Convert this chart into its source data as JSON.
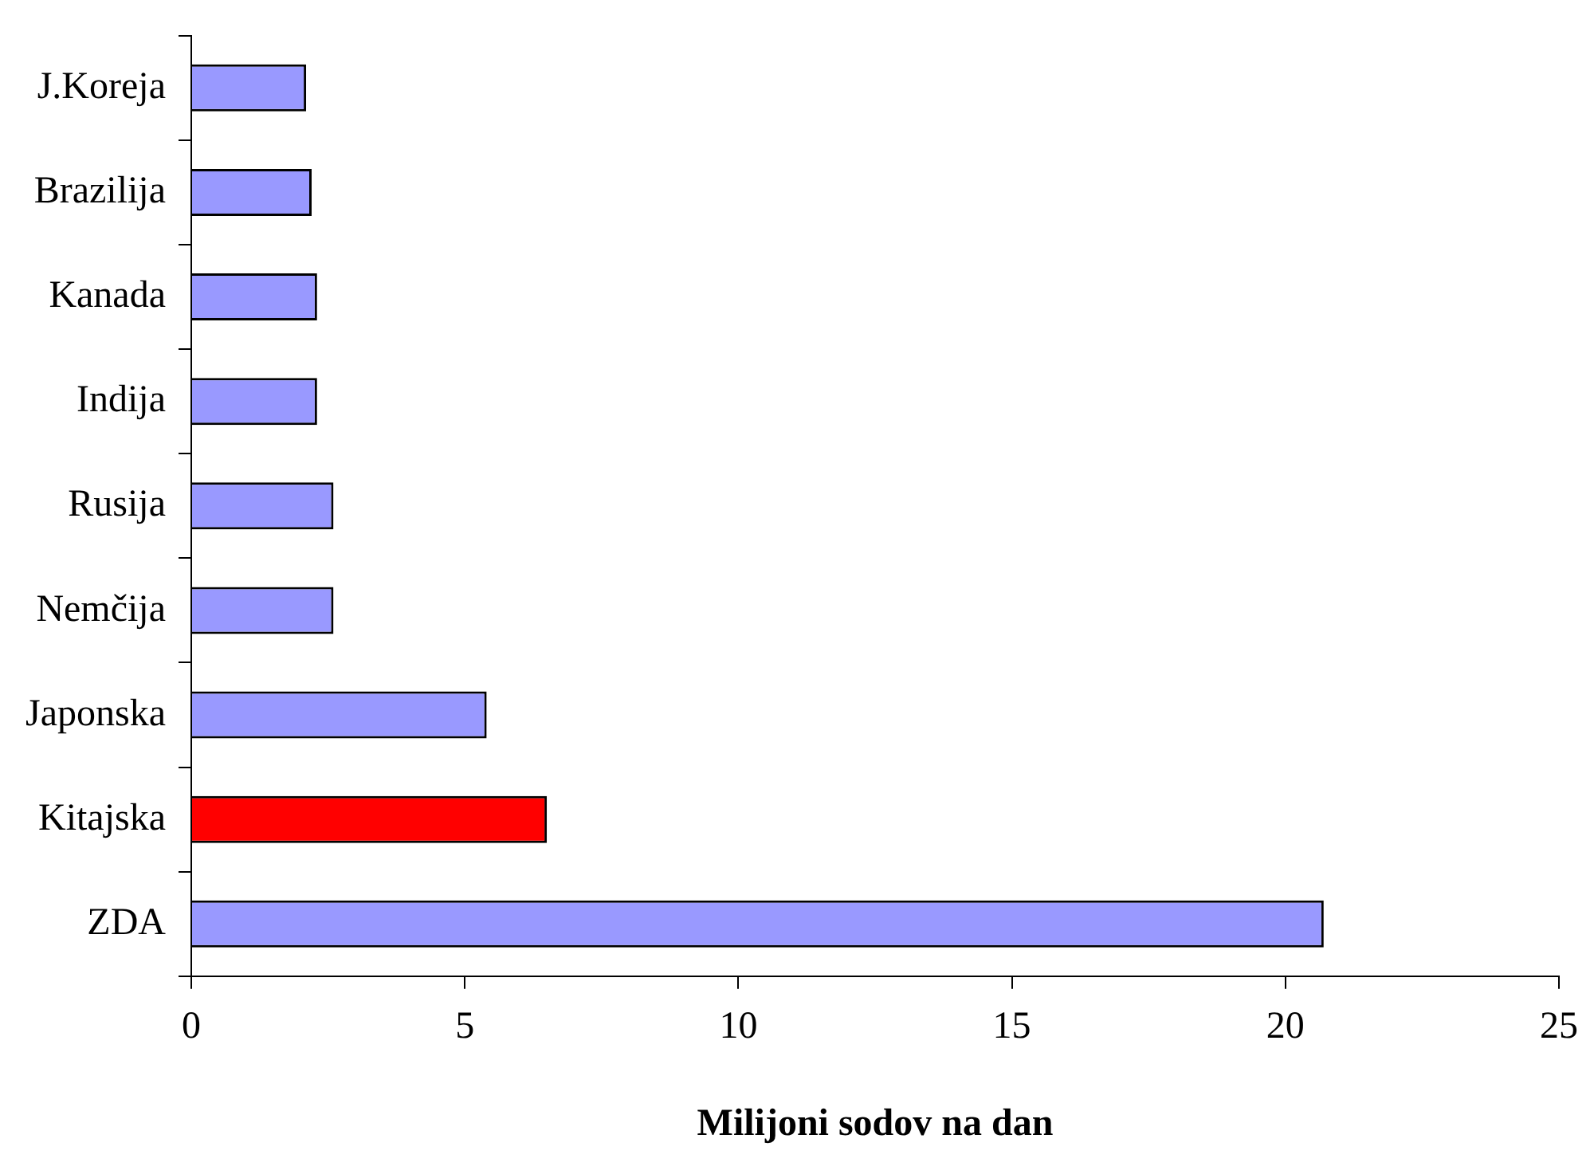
{
  "chart_data": {
    "type": "bar",
    "orientation": "horizontal",
    "xlabel": "Milijoni sodov na dan",
    "categories": [
      "J.Koreja",
      "Brazilija",
      "Kanada",
      "Indija",
      "Rusija",
      "Nemčija",
      "Japonska",
      "Kitajska",
      "ZDA"
    ],
    "values": [
      2.1,
      2.2,
      2.3,
      2.3,
      2.6,
      2.6,
      5.4,
      6.5,
      20.7
    ],
    "colors": [
      "#9999ff",
      "#9999ff",
      "#9999ff",
      "#9999ff",
      "#9999ff",
      "#9999ff",
      "#9999ff",
      "#ff0000",
      "#9999ff"
    ],
    "xlim": [
      0,
      25
    ],
    "xticks": [
      0,
      5,
      10,
      15,
      20,
      25
    ],
    "grid": false,
    "legend": false
  }
}
